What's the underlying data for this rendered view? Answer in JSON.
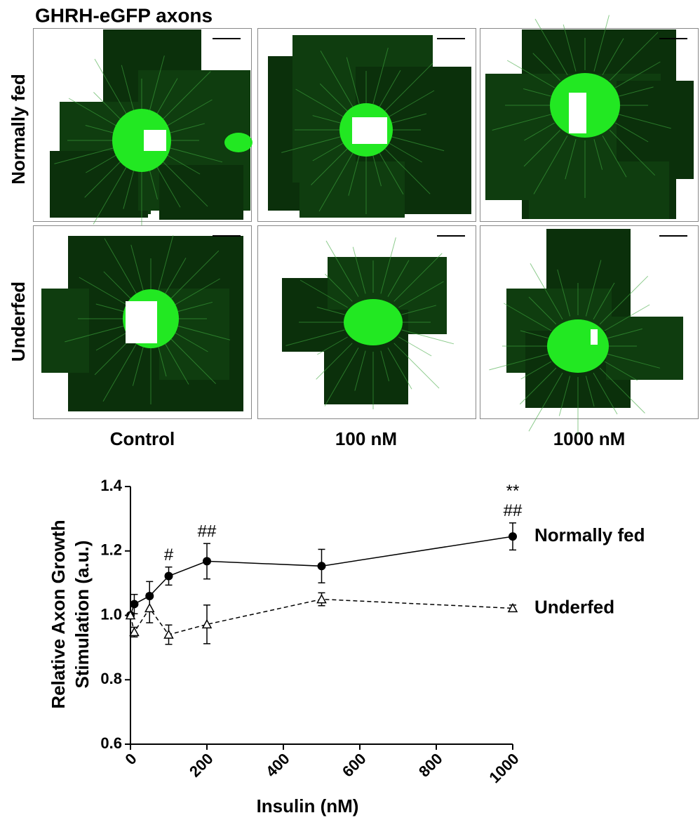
{
  "panels": {
    "title": "GHRH-eGFP axons",
    "rows": [
      "Normally fed",
      "Underfed"
    ],
    "columns": [
      "Control",
      "100 nM",
      "1000 nM"
    ]
  },
  "chart_data": {
    "type": "line",
    "ylabel": [
      "Relative Axon Growth",
      "Stimulation (a.u.)"
    ],
    "xlabel": "Insulin (nM)",
    "x": [
      0,
      10,
      50,
      100,
      200,
      500,
      1000
    ],
    "series": [
      {
        "name": "Normally fed",
        "color": "#000000",
        "marker": "circle",
        "dash": false,
        "values": [
          1.0,
          1.035,
          1.06,
          1.122,
          1.168,
          1.153,
          1.245
        ],
        "errors": [
          0,
          0.03,
          0.045,
          0.028,
          0.055,
          0.052,
          0.042
        ]
      },
      {
        "name": "Underfed",
        "color": "#000000",
        "marker": "triangle",
        "dash": true,
        "values": [
          1.0,
          0.948,
          1.022,
          0.94,
          0.972,
          1.05,
          1.022
        ],
        "errors": [
          0,
          0.015,
          0.045,
          0.03,
          0.06,
          0.02,
          0.01
        ]
      }
    ],
    "annotations": [
      {
        "text": "#",
        "x": 100
      },
      {
        "text": "##",
        "x": 200
      },
      {
        "text": "##",
        "x": 1000
      },
      {
        "text": "**",
        "x": 1000
      }
    ],
    "xlim": [
      0,
      1000
    ],
    "xticks": [
      0,
      200,
      400,
      600,
      800,
      1000
    ],
    "ylim": [
      0.6,
      1.4
    ],
    "yticks": [
      0.6,
      0.8,
      {
        "value": 1.0,
        "label": "1.0"
      },
      1.2,
      1.4
    ]
  }
}
